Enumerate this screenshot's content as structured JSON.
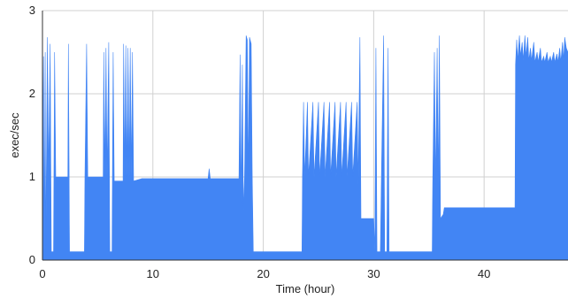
{
  "chart_data": {
    "type": "area",
    "title": "",
    "xlabel": "Time (hour)",
    "ylabel": "exec/sec",
    "xlim": [
      0,
      47.6
    ],
    "ylim": [
      0,
      3
    ],
    "x_ticks": [
      0,
      10,
      20,
      30,
      40
    ],
    "x_tick_labels": [
      "0",
      "10",
      "20",
      "30",
      "40"
    ],
    "y_ticks": [
      0,
      1,
      2,
      3
    ],
    "y_tick_labels": [
      "0",
      "1",
      "2",
      "3"
    ],
    "grid": true,
    "legend": "none",
    "color": "#4285F4",
    "series": [
      {
        "values": [
          [
            0.0,
            0.0
          ],
          [
            0.0,
            1.0
          ],
          [
            0.1,
            2.45
          ],
          [
            0.15,
            0.1
          ],
          [
            0.25,
            2.5
          ],
          [
            0.3,
            0.1
          ],
          [
            0.45,
            2.68
          ],
          [
            0.55,
            1.0
          ],
          [
            0.7,
            2.6
          ],
          [
            0.8,
            0.1
          ],
          [
            1.0,
            0.1
          ],
          [
            1.1,
            2.5
          ],
          [
            1.2,
            1.0
          ],
          [
            1.5,
            1.0
          ],
          [
            2.0,
            1.0
          ],
          [
            2.3,
            1.0
          ],
          [
            2.35,
            2.6
          ],
          [
            2.45,
            0.1
          ],
          [
            3.0,
            0.1
          ],
          [
            3.8,
            0.1
          ],
          [
            3.85,
            1.0
          ],
          [
            4.0,
            2.6
          ],
          [
            4.1,
            1.0
          ],
          [
            5.0,
            1.0
          ],
          [
            5.5,
            1.0
          ],
          [
            5.55,
            2.5
          ],
          [
            5.65,
            1.0
          ],
          [
            5.75,
            2.55
          ],
          [
            5.85,
            1.0
          ],
          [
            6.0,
            2.62
          ],
          [
            6.1,
            0.1
          ],
          [
            6.3,
            0.1
          ],
          [
            6.4,
            2.5
          ],
          [
            6.5,
            0.95
          ],
          [
            7.0,
            0.95
          ],
          [
            7.3,
            0.95
          ],
          [
            7.35,
            2.6
          ],
          [
            7.45,
            1.0
          ],
          [
            7.55,
            2.58
          ],
          [
            7.65,
            1.0
          ],
          [
            7.75,
            2.55
          ],
          [
            7.85,
            1.0
          ],
          [
            7.95,
            2.55
          ],
          [
            8.05,
            1.0
          ],
          [
            8.15,
            2.5
          ],
          [
            8.25,
            0.95
          ],
          [
            9.0,
            0.98
          ],
          [
            10.0,
            0.98
          ],
          [
            11.0,
            0.98
          ],
          [
            12.0,
            0.98
          ],
          [
            13.0,
            0.98
          ],
          [
            14.0,
            0.98
          ],
          [
            15.0,
            0.98
          ],
          [
            15.1,
            1.1
          ],
          [
            15.2,
            0.98
          ],
          [
            16.0,
            0.98
          ],
          [
            17.0,
            0.98
          ],
          [
            17.8,
            0.98
          ],
          [
            17.9,
            2.47
          ],
          [
            18.0,
            0.7
          ],
          [
            18.1,
            2.35
          ],
          [
            18.2,
            0.6
          ],
          [
            18.3,
            1.0
          ],
          [
            18.45,
            2.7
          ],
          [
            18.55,
            2.65
          ],
          [
            18.65,
            1.0
          ],
          [
            18.75,
            2.68
          ],
          [
            18.9,
            2.6
          ],
          [
            19.0,
            1.0
          ],
          [
            19.1,
            0.1
          ],
          [
            20.0,
            0.1
          ],
          [
            21.0,
            0.1
          ],
          [
            22.0,
            0.1
          ],
          [
            23.0,
            0.1
          ],
          [
            23.5,
            0.1
          ],
          [
            23.55,
            1.0
          ],
          [
            23.65,
            1.9
          ],
          [
            23.75,
            1.0
          ],
          [
            24.0,
            1.9
          ],
          [
            24.1,
            1.0
          ],
          [
            24.5,
            1.9
          ],
          [
            24.6,
            1.0
          ],
          [
            25.0,
            1.9
          ],
          [
            25.1,
            1.0
          ],
          [
            25.5,
            1.9
          ],
          [
            25.6,
            1.0
          ],
          [
            26.0,
            1.9
          ],
          [
            26.1,
            1.0
          ],
          [
            26.5,
            1.9
          ],
          [
            26.6,
            1.0
          ],
          [
            27.0,
            1.9
          ],
          [
            27.1,
            1.0
          ],
          [
            27.5,
            1.9
          ],
          [
            27.6,
            1.0
          ],
          [
            28.0,
            1.9
          ],
          [
            28.1,
            1.0
          ],
          [
            28.5,
            1.9
          ],
          [
            28.6,
            0.9
          ],
          [
            28.75,
            2.68
          ],
          [
            28.85,
            0.5
          ],
          [
            29.5,
            0.5
          ],
          [
            30.0,
            0.5
          ],
          [
            30.1,
            0.1
          ],
          [
            30.2,
            2.55
          ],
          [
            30.3,
            0.1
          ],
          [
            30.6,
            0.1
          ],
          [
            30.7,
            1.0
          ],
          [
            30.9,
            2.7
          ],
          [
            31.0,
            0.1
          ],
          [
            31.2,
            0.1
          ],
          [
            31.3,
            2.55
          ],
          [
            31.4,
            0.1
          ],
          [
            32.0,
            0.1
          ],
          [
            33.0,
            0.1
          ],
          [
            34.0,
            0.1
          ],
          [
            35.0,
            0.1
          ],
          [
            35.3,
            0.1
          ],
          [
            35.35,
            0.9
          ],
          [
            35.5,
            2.5
          ],
          [
            35.6,
            0.9
          ],
          [
            35.75,
            2.55
          ],
          [
            35.85,
            0.9
          ],
          [
            35.95,
            2.7
          ],
          [
            36.05,
            0.5
          ],
          [
            36.3,
            0.55
          ],
          [
            36.4,
            0.63
          ],
          [
            37.0,
            0.63
          ],
          [
            38.0,
            0.63
          ],
          [
            39.0,
            0.63
          ],
          [
            40.0,
            0.63
          ],
          [
            41.0,
            0.63
          ],
          [
            42.0,
            0.63
          ],
          [
            42.8,
            0.63
          ],
          [
            42.85,
            2.35
          ],
          [
            42.95,
            2.65
          ],
          [
            43.05,
            2.4
          ],
          [
            43.2,
            2.7
          ],
          [
            43.3,
            2.45
          ],
          [
            43.45,
            2.62
          ],
          [
            43.55,
            2.4
          ],
          [
            43.7,
            2.7
          ],
          [
            43.8,
            2.45
          ],
          [
            43.95,
            2.68
          ],
          [
            44.05,
            2.4
          ],
          [
            44.2,
            2.55
          ],
          [
            44.3,
            2.4
          ],
          [
            44.5,
            2.62
          ],
          [
            44.6,
            2.38
          ],
          [
            44.8,
            2.5
          ],
          [
            44.9,
            2.38
          ],
          [
            45.1,
            2.55
          ],
          [
            45.2,
            2.38
          ],
          [
            45.4,
            2.45
          ],
          [
            45.5,
            2.38
          ],
          [
            45.7,
            2.5
          ],
          [
            45.8,
            2.38
          ],
          [
            46.0,
            2.45
          ],
          [
            46.1,
            2.38
          ],
          [
            46.3,
            2.5
          ],
          [
            46.4,
            2.38
          ],
          [
            46.6,
            2.48
          ],
          [
            46.7,
            2.38
          ],
          [
            46.85,
            2.55
          ],
          [
            46.95,
            2.38
          ],
          [
            47.1,
            2.62
          ],
          [
            47.2,
            2.4
          ],
          [
            47.3,
            2.68
          ],
          [
            47.45,
            2.55
          ],
          [
            47.6,
            2.5
          ],
          [
            47.6,
            0.0
          ]
        ]
      }
    ]
  }
}
